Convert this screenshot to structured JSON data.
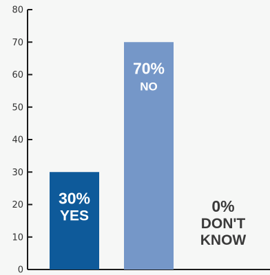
{
  "chart_data": {
    "type": "bar",
    "categories": [
      "YES",
      "NO",
      "DON'T KNOW"
    ],
    "values": [
      30,
      70,
      0
    ],
    "percent_labels": [
      "30%",
      "70%",
      "0%"
    ],
    "category_labels": [
      [
        "YES"
      ],
      [
        "NO"
      ],
      [
        "DON'T",
        "KNOW"
      ]
    ],
    "bar_colors": [
      "#0e5a9a",
      "#7597c8",
      "#7597c8"
    ],
    "label_colors": [
      "#ffffff",
      "#ffffff",
      "#3a3a3a"
    ],
    "ylim": [
      0,
      80
    ],
    "yticks": [
      0,
      10,
      20,
      30,
      40,
      50,
      60,
      70,
      80
    ],
    "title": "",
    "xlabel": "",
    "ylabel": "",
    "grid": false,
    "legend": "none"
  }
}
